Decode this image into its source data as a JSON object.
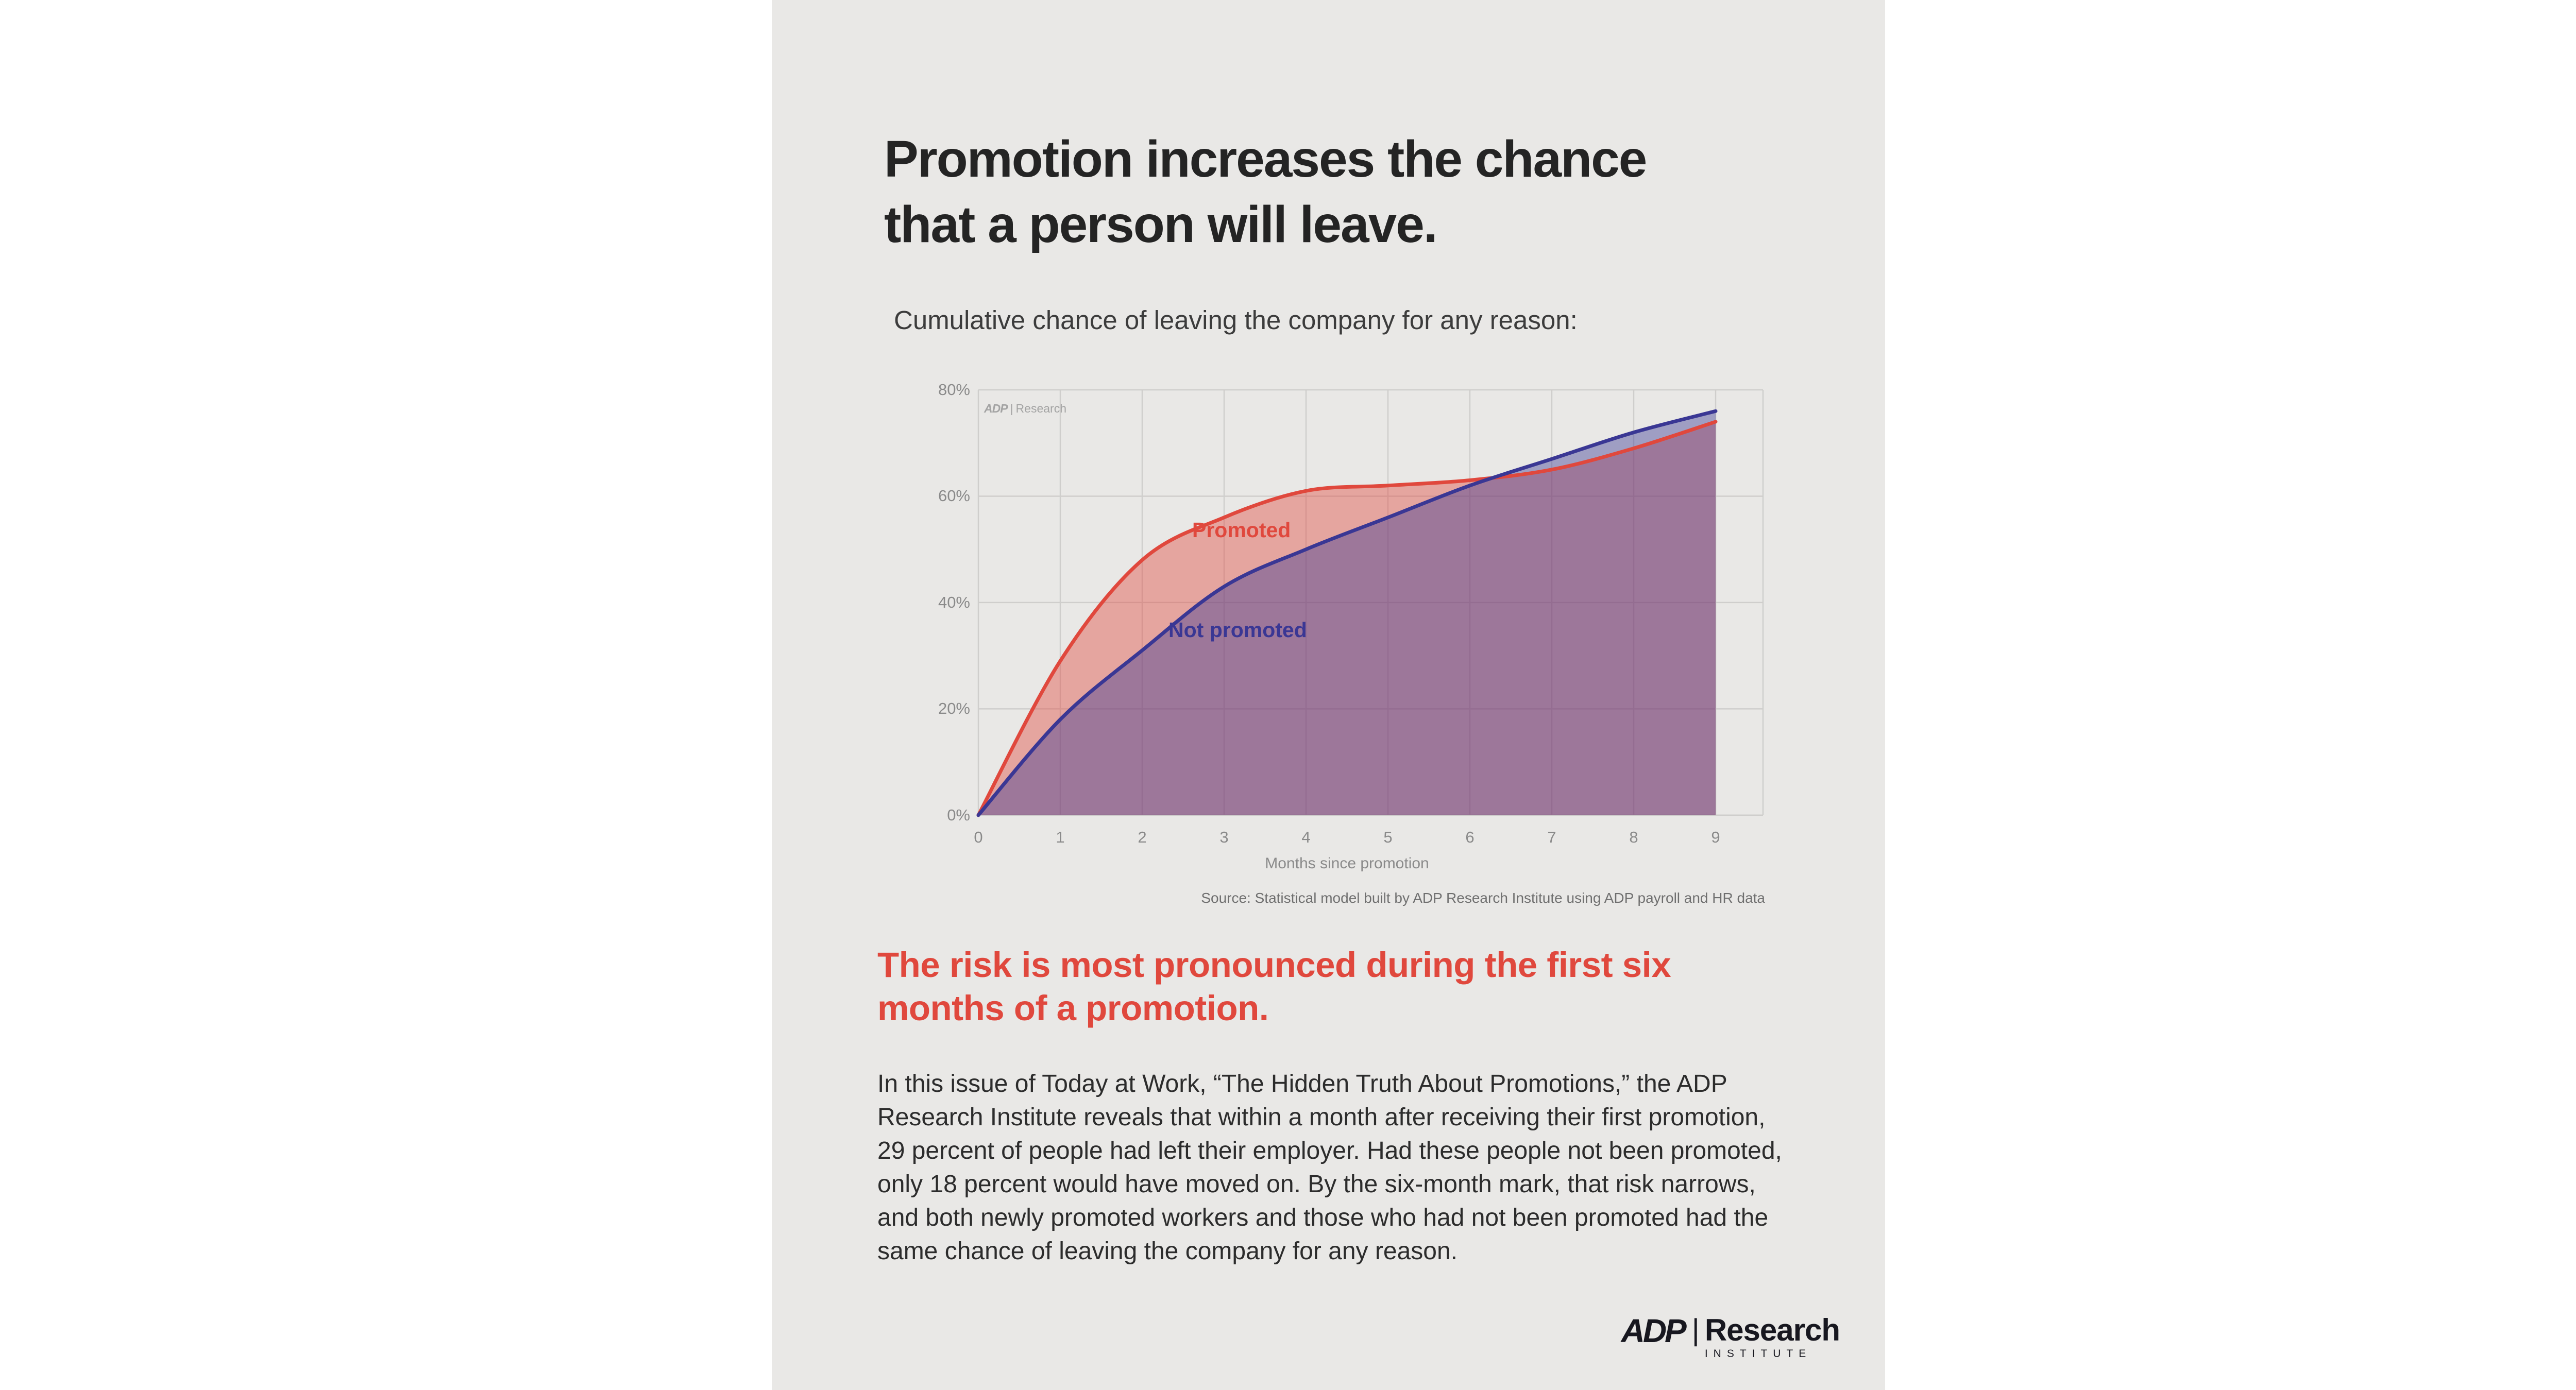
{
  "header": {
    "title_lines": [
      "Promotion increases the chance",
      "that a person will leave."
    ],
    "subtitle": "Cumulative chance of leaving the company for any reason:"
  },
  "chart_data": {
    "type": "area",
    "x": [
      0,
      1,
      2,
      3,
      4,
      5,
      6,
      7,
      8,
      9
    ],
    "xlabel": "Months since promotion",
    "ylabel": "",
    "ylim": [
      0,
      80
    ],
    "ytick_values": [
      0,
      20,
      40,
      60,
      80
    ],
    "yticks": [
      "0%",
      "20%",
      "40%",
      "60%",
      "80%"
    ],
    "grid": true,
    "series": [
      {
        "name": "Promoted",
        "color": "#e0483d",
        "values": [
          0,
          29,
          48,
          56,
          61,
          62,
          63,
          65,
          69,
          74
        ]
      },
      {
        "name": "Not promoted",
        "color": "#3a3794",
        "values": [
          0,
          18,
          31,
          43,
          50,
          56,
          62,
          67,
          72,
          76
        ]
      }
    ],
    "watermark": {
      "adp": "ADP",
      "divider": "|",
      "research": "Research"
    },
    "source": "Source: Statistical model built by ADP Research Institute using ADP payroll and HR data"
  },
  "callout": {
    "heading_lines": [
      "The risk is most pronounced during the first six",
      "months of a promotion."
    ],
    "body": "In this issue of Today at Work, “The Hidden Truth About Promotions,” the ADP Research Institute reveals that within a month after receiving their first promotion, 29 percent of people had left their employer. Had these people not been promoted, only 18 percent would have moved on. By the six-month mark, that risk narrows, and both newly promoted workers and those who had not been promoted had the same chance of leaving the company for any reason."
  },
  "footer": {
    "logo": {
      "adp": "ADP",
      "divider": "|",
      "research": "Research",
      "institute": "INSTITUTE"
    }
  },
  "colors": {
    "promoted": "#e0483d",
    "not_promoted": "#3a3794",
    "panel_bg": "#e9e8e6",
    "grid": "#cfcecc",
    "title_text": "#242424",
    "body_text": "#2c2c2c",
    "muted": "#8a8a8a",
    "source": "#6f6f6f",
    "logo": "#17171f"
  }
}
